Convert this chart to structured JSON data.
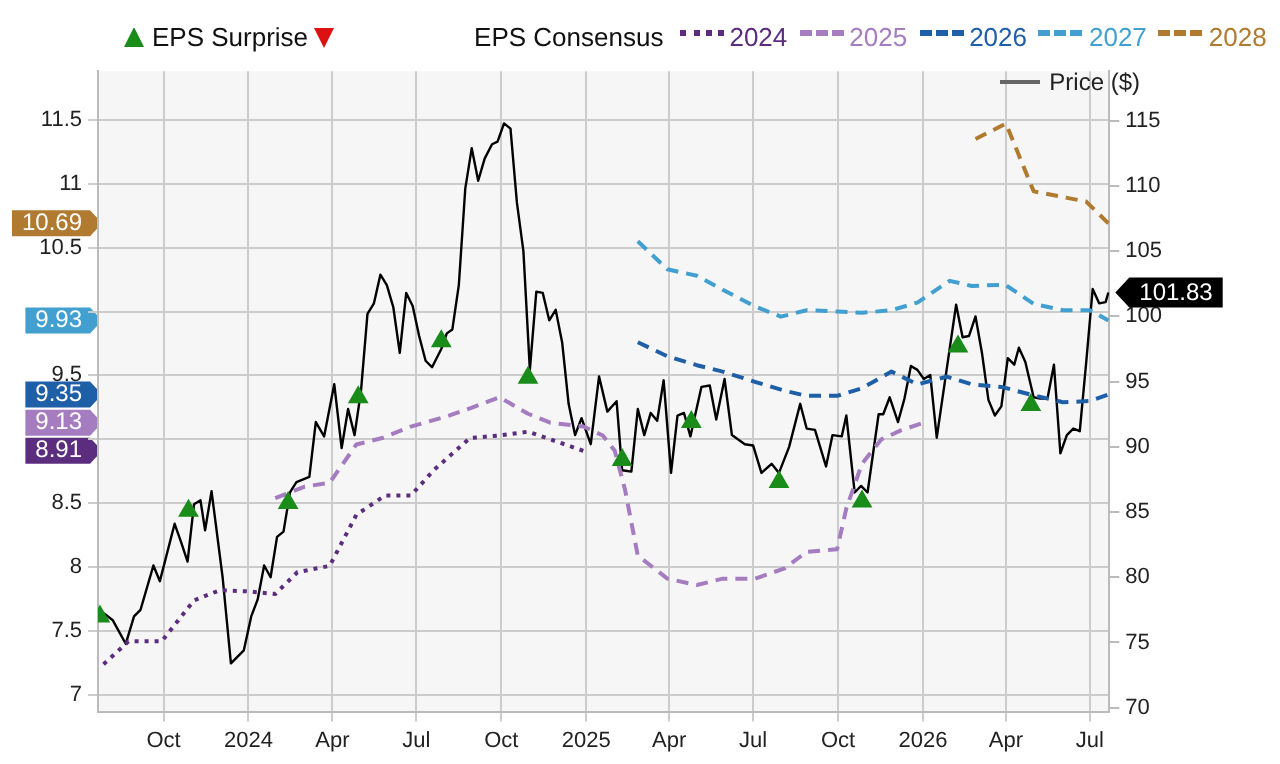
{
  "chart_data": {
    "type": "line",
    "legend": "top",
    "legend_title": "EPS Consensus",
    "grid": true,
    "xlim": [
      "2023-07-22",
      "2026-07-22"
    ],
    "xticks": [
      {
        "value": "2023-10-01",
        "label": "Oct"
      },
      {
        "value": "2024-01-01",
        "label": "2024"
      },
      {
        "value": "2024-04-01",
        "label": "Apr"
      },
      {
        "value": "2024-07-01",
        "label": "Jul"
      },
      {
        "value": "2024-10-01",
        "label": "Oct"
      },
      {
        "value": "2025-01-01",
        "label": "2025"
      },
      {
        "value": "2025-04-01",
        "label": "Apr"
      },
      {
        "value": "2025-07-01",
        "label": "Jul"
      },
      {
        "value": "2025-10-01",
        "label": "Oct"
      },
      {
        "value": "2026-01-01",
        "label": "2026"
      },
      {
        "value": "2026-04-01",
        "label": "Apr"
      },
      {
        "value": "2026-07-01",
        "label": "Jul"
      }
    ],
    "ylim": [
      6.87,
      11.88
    ],
    "yticks": [
      7,
      7.5,
      8,
      8.5,
      8.91,
      {
        "value": 9,
        "label": null
      },
      9.13,
      9.35,
      9.5,
      9.93,
      {
        "value": 10,
        "label": null
      },
      10.5,
      10.69,
      11,
      11.5
    ],
    "y2lim": [
      69.7,
      118.8
    ],
    "y2ticks": [
      70,
      75,
      80,
      85,
      90,
      95,
      100,
      105,
      110,
      115
    ],
    "series": [
      {
        "name": "EPS Surprise",
        "type": "scatter",
        "marker": "triangle",
        "axis": "y2",
        "color": "#1a8c1a",
        "x": [
          "2023-07-24",
          "2023-10-28",
          "2024-02-13",
          "2024-04-29",
          "2024-07-28",
          "2024-10-30",
          "2025-02-09",
          "2025-04-25",
          "2025-07-29",
          "2025-10-27",
          "2026-02-08",
          "2026-04-28"
        ],
        "values": [
          77.0,
          85.1,
          85.7,
          93.8,
          98.1,
          95.3,
          89.0,
          91.9,
          87.3,
          85.8,
          97.7,
          93.2
        ]
      },
      {
        "name": "2024",
        "type": "line",
        "line_style": "dotted",
        "marker": "none",
        "color": "#5c2d7e",
        "x": [
          "2023-07-28",
          "2023-08-24",
          "2023-09-29",
          "2023-11-03",
          "2023-12-01",
          "2024-01-01",
          "2024-01-30",
          "2024-02-23",
          "2024-03-29",
          "2024-04-27",
          "2024-05-28",
          "2024-06-25",
          "2024-07-20",
          "2024-08-28",
          "2024-09-29",
          "2024-10-30",
          "2024-12-29"
        ],
        "values": [
          7.24,
          7.42,
          7.42,
          7.74,
          7.82,
          7.81,
          7.79,
          7.96,
          8.01,
          8.41,
          8.56,
          8.56,
          8.76,
          9.01,
          9.03,
          9.06,
          8.91
        ]
      },
      {
        "name": "2025",
        "type": "line",
        "line_style": "dashed",
        "marker": "none",
        "color": "#a57cc0",
        "x": [
          "2024-01-30",
          "2024-03-02",
          "2024-03-29",
          "2024-04-27",
          "2024-05-25",
          "2024-06-25",
          "2024-08-03",
          "2024-08-31",
          "2024-09-29",
          "2024-10-30",
          "2024-11-23",
          "2024-12-29",
          "2025-01-19",
          "2025-02-01",
          "2025-02-12",
          "2025-02-26",
          "2025-03-30",
          "2025-05-01",
          "2025-05-29",
          "2025-07-03",
          "2025-08-04",
          "2025-08-28",
          "2025-09-30",
          "2025-10-10",
          "2025-10-27",
          "2025-11-17",
          "2025-12-08",
          "2026-01-02"
        ],
        "values": [
          8.54,
          8.63,
          8.66,
          8.96,
          9.01,
          9.1,
          9.18,
          9.25,
          9.33,
          9.2,
          9.13,
          9.1,
          9.03,
          8.91,
          8.61,
          8.09,
          7.91,
          7.86,
          7.91,
          7.91,
          7.99,
          8.12,
          8.14,
          8.46,
          8.81,
          9.0,
          9.07,
          9.13
        ]
      },
      {
        "name": "2026",
        "type": "line",
        "line_style": "dashed",
        "marker": "none",
        "color": "#1f5fa8",
        "x": [
          "2025-02-26",
          "2025-03-30",
          "2025-05-01",
          "2025-05-29",
          "2025-07-03",
          "2025-08-04",
          "2025-08-28",
          "2025-09-30",
          "2025-10-27",
          "2025-11-28",
          "2025-12-26",
          "2026-01-27",
          "2026-02-23",
          "2026-03-27",
          "2026-04-28",
          "2026-06-02",
          "2026-07-01",
          "2026-07-21"
        ],
        "values": [
          9.76,
          9.65,
          9.58,
          9.53,
          9.45,
          9.38,
          9.34,
          9.34,
          9.4,
          9.53,
          9.43,
          9.49,
          9.43,
          9.41,
          9.35,
          9.29,
          9.3,
          9.35
        ]
      },
      {
        "name": "2027",
        "type": "line",
        "line_style": "dashed",
        "marker": "none",
        "color": "#42a0d0",
        "x": [
          "2025-02-26",
          "2025-03-30",
          "2025-05-01",
          "2025-05-29",
          "2025-07-03",
          "2025-07-31",
          "2025-08-28",
          "2025-09-30",
          "2025-10-27",
          "2025-11-28",
          "2025-12-26",
          "2026-01-30",
          "2026-02-23",
          "2026-03-31",
          "2026-05-01",
          "2026-06-02",
          "2026-07-01",
          "2026-07-21"
        ],
        "values": [
          10.55,
          10.33,
          10.28,
          10.17,
          10.04,
          9.96,
          10.01,
          10.0,
          9.99,
          10.01,
          10.07,
          10.24,
          10.2,
          10.21,
          10.06,
          10.01,
          10.01,
          9.93
        ]
      },
      {
        "name": "2028",
        "type": "line",
        "line_style": "dashed",
        "marker": "none",
        "color": "#b07a30",
        "x": [
          "2026-02-27",
          "2026-04-01",
          "2026-05-01",
          "2026-06-27",
          "2026-07-21"
        ],
        "values": [
          11.35,
          11.47,
          10.94,
          10.86,
          10.69
        ]
      },
      {
        "name": "Price ($)",
        "type": "line",
        "line_style": "solid",
        "marker": "none",
        "axis": "y2",
        "color": "#000000",
        "x": [
          "2023-07-22",
          "2023-07-27",
          "2023-08-07",
          "2023-08-21",
          "2023-08-30",
          "2023-09-06",
          "2023-09-20",
          "2023-09-27",
          "2023-10-13",
          "2023-10-20",
          "2023-10-27",
          "2023-11-03",
          "2023-11-10",
          "2023-11-15",
          "2023-11-22",
          "2023-12-04",
          "2023-12-13",
          "2023-12-27",
          "2024-01-04",
          "2024-01-11",
          "2024-01-18",
          "2024-01-25",
          "2024-02-01",
          "2024-02-08",
          "2024-02-15",
          "2024-02-22",
          "2024-03-07",
          "2024-03-14",
          "2024-03-23",
          "2024-04-03",
          "2024-04-11",
          "2024-04-18",
          "2024-04-25",
          "2024-05-02",
          "2024-05-09",
          "2024-05-16",
          "2024-05-23",
          "2024-05-30",
          "2024-06-06",
          "2024-06-13",
          "2024-06-20",
          "2024-06-27",
          "2024-07-04",
          "2024-07-11",
          "2024-07-18",
          "2024-07-28",
          "2024-08-03",
          "2024-08-09",
          "2024-08-16",
          "2024-08-23",
          "2024-08-30",
          "2024-09-06",
          "2024-09-13",
          "2024-09-21",
          "2024-09-27",
          "2024-10-04",
          "2024-10-11",
          "2024-10-18",
          "2024-10-25",
          "2024-11-01",
          "2024-11-08",
          "2024-11-15",
          "2024-11-22",
          "2024-11-29",
          "2024-12-06",
          "2024-12-13",
          "2024-12-20",
          "2024-12-27",
          "2025-01-06",
          "2025-01-15",
          "2025-01-24",
          "2025-02-03",
          "2025-02-09",
          "2025-02-19",
          "2025-02-26",
          "2025-03-05",
          "2025-03-12",
          "2025-03-19",
          "2025-03-26",
          "2025-04-03",
          "2025-04-10",
          "2025-04-17",
          "2025-04-24",
          "2025-05-06",
          "2025-05-15",
          "2025-05-22",
          "2025-05-31",
          "2025-06-08",
          "2025-06-22",
          "2025-07-01",
          "2025-07-10",
          "2025-07-21",
          "2025-07-29",
          "2025-08-09",
          "2025-08-21",
          "2025-08-28",
          "2025-09-06",
          "2025-09-18",
          "2025-09-25",
          "2025-10-05",
          "2025-10-10",
          "2025-10-19",
          "2025-10-26",
          "2025-11-02",
          "2025-11-14",
          "2025-11-19",
          "2025-11-26",
          "2025-12-05",
          "2025-12-12",
          "2025-12-19",
          "2025-12-26",
          "2026-01-02",
          "2026-01-09",
          "2026-01-16",
          "2026-01-25",
          "2026-02-06",
          "2026-02-13",
          "2026-02-20",
          "2026-02-27",
          "2026-03-06",
          "2026-03-13",
          "2026-03-20",
          "2026-03-27",
          "2026-04-03",
          "2026-04-10",
          "2026-04-15",
          "2026-04-22",
          "2026-05-01",
          "2026-05-08",
          "2026-05-16",
          "2026-05-23",
          "2026-05-30",
          "2026-06-06",
          "2026-06-13",
          "2026-06-20",
          "2026-06-27",
          "2026-07-04",
          "2026-07-11",
          "2026-07-18",
          "2026-07-21"
        ],
        "values": [
          77.0,
          77.3,
          76.7,
          74.9,
          77.0,
          77.5,
          80.9,
          79.7,
          84.1,
          82.7,
          81.2,
          85.6,
          85.9,
          83.6,
          86.6,
          80.0,
          73.4,
          74.4,
          77.0,
          78.3,
          80.9,
          80.0,
          83.1,
          83.5,
          86.5,
          87.3,
          87.7,
          91.9,
          90.8,
          94.8,
          89.9,
          92.9,
          90.9,
          94.3,
          100.2,
          101.0,
          103.2,
          102.4,
          100.7,
          97.2,
          101.8,
          100.8,
          98.5,
          96.6,
          96.1,
          97.5,
          98.7,
          99.0,
          102.4,
          109.8,
          112.9,
          110.4,
          112.1,
          113.2,
          113.4,
          114.8,
          114.4,
          108.7,
          105.0,
          95.9,
          101.9,
          101.8,
          99.7,
          100.5,
          98.0,
          93.3,
          90.9,
          92.2,
          90.2,
          95.4,
          92.7,
          93.5,
          88.2,
          88.1,
          92.9,
          90.9,
          92.6,
          92.0,
          95.1,
          88.0,
          92.4,
          92.6,
          90.8,
          94.6,
          94.7,
          92.1,
          95.2,
          90.9,
          90.2,
          90.1,
          88.0,
          88.7,
          88.0,
          90.0,
          93.3,
          91.4,
          91.3,
          88.5,
          90.9,
          90.8,
          92.4,
          86.5,
          87.0,
          86.5,
          92.5,
          92.5,
          93.8,
          91.9,
          93.7,
          96.2,
          95.9,
          95.2,
          95.5,
          90.7,
          95.1,
          100.9,
          98.4,
          98.5,
          100.0,
          97.2,
          93.6,
          92.4,
          93.1,
          96.8,
          96.3,
          97.6,
          96.5,
          93.8,
          93.7,
          93.7,
          96.3,
          89.5,
          90.9,
          91.4,
          91.2,
          96.5,
          102.1,
          101.0,
          101.1,
          101.83
        ],
        "value_labels": [
          null,
          null,
          null,
          null,
          null,
          null,
          null,
          null,
          null,
          null,
          null,
          null,
          null,
          null,
          null,
          null,
          null,
          null,
          null,
          null,
          null,
          null,
          null,
          null,
          null,
          null,
          null,
          null,
          null,
          null,
          null,
          null,
          null,
          null,
          null,
          null,
          null,
          null,
          null,
          null,
          null,
          null,
          null,
          null,
          null,
          null,
          null,
          null,
          null,
          null,
          null,
          null,
          null,
          null,
          null,
          null,
          null,
          null,
          null,
          null,
          null,
          null,
          null,
          null,
          null,
          null,
          null,
          null,
          null,
          null,
          null,
          null,
          null,
          null,
          null,
          null,
          null,
          null,
          null,
          null,
          null,
          null,
          null,
          null,
          null,
          null,
          null,
          null,
          null,
          null,
          null,
          null,
          null,
          null,
          null,
          null,
          null,
          null,
          null,
          null,
          null,
          null,
          null,
          null,
          null,
          null,
          null,
          null,
          null,
          null,
          null,
          null,
          null,
          null,
          null,
          null,
          null,
          null,
          null,
          null,
          null,
          null,
          null,
          null,
          null,
          null,
          null,
          null,
          null,
          null,
          null,
          null,
          null,
          null,
          null,
          null,
          null,
          null,
          null,
          "101.83"
        ]
      }
    ]
  }
}
